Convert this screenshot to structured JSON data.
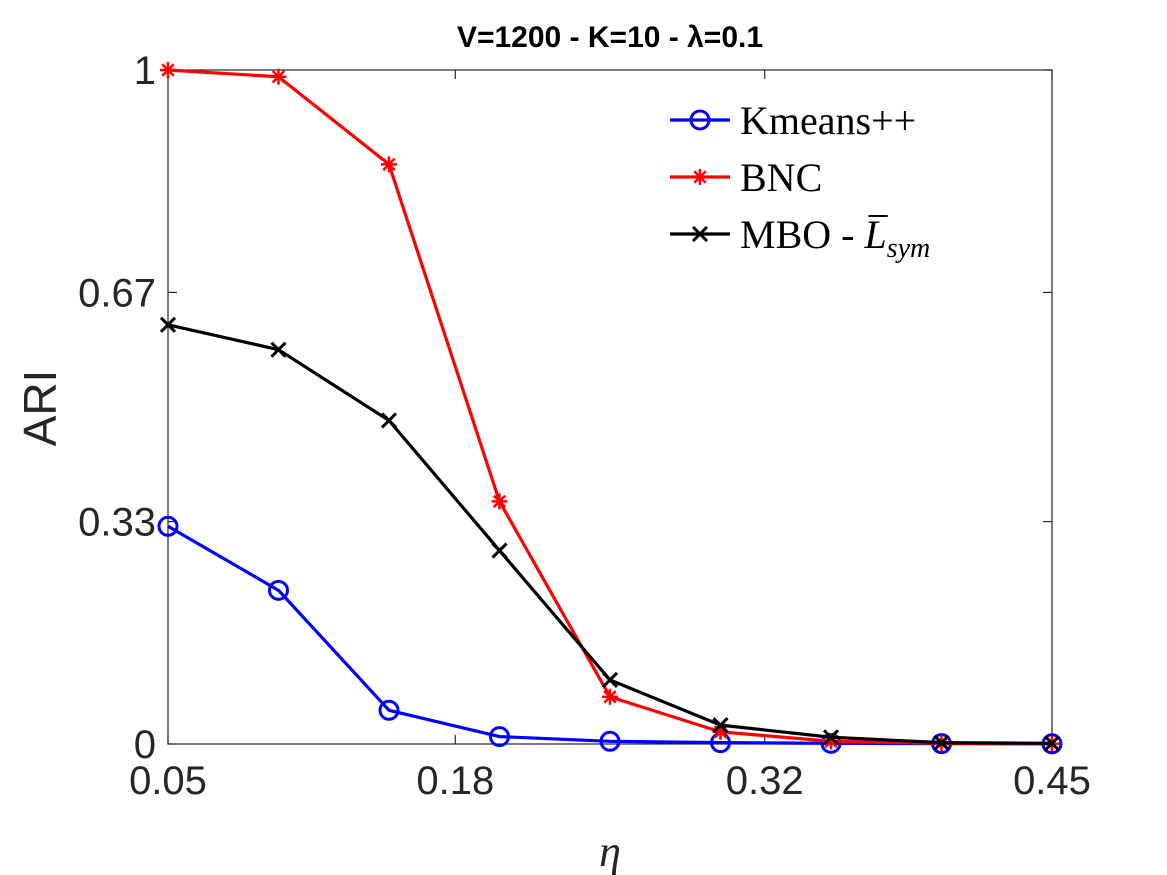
{
  "chart_data": {
    "type": "line",
    "title": "V=1200 - K=10 - λ=0.1",
    "xlabel": "η",
    "ylabel": "ARI",
    "x": [
      0.05,
      0.1,
      0.15,
      0.2,
      0.25,
      0.3,
      0.35,
      0.4,
      0.45
    ],
    "xlim": [
      0.05,
      0.45
    ],
    "ylim": [
      0,
      1
    ],
    "xticks": [
      0.05,
      0.18,
      0.32,
      0.45
    ],
    "xtick_labels": [
      "0.05",
      "0.18",
      "0.32",
      "0.45"
    ],
    "yticks": [
      0,
      0.33,
      0.67,
      1
    ],
    "ytick_labels": [
      "0",
      "0.33",
      "0.67",
      "1"
    ],
    "legend_position": "top-right",
    "series": [
      {
        "name": "Kmeans++",
        "marker": "circle",
        "color": "#0000ff",
        "values": [
          0.323,
          0.228,
          0.05,
          0.011,
          0.004,
          0.002,
          0.001,
          0.0005,
          0.0003
        ]
      },
      {
        "name": "BNC",
        "marker": "asterisk",
        "color": "#ff0000",
        "values": [
          1.0,
          0.99,
          0.86,
          0.36,
          0.07,
          0.018,
          0.004,
          0.001,
          0.0005
        ]
      },
      {
        "name": "MBO - L̄sym",
        "legend_main": "MBO - ",
        "legend_symbol": "L",
        "legend_subscript": "sym",
        "marker": "cross",
        "color": "#000000",
        "values": [
          0.622,
          0.585,
          0.48,
          0.287,
          0.095,
          0.028,
          0.01,
          0.002,
          0.001
        ]
      }
    ]
  }
}
